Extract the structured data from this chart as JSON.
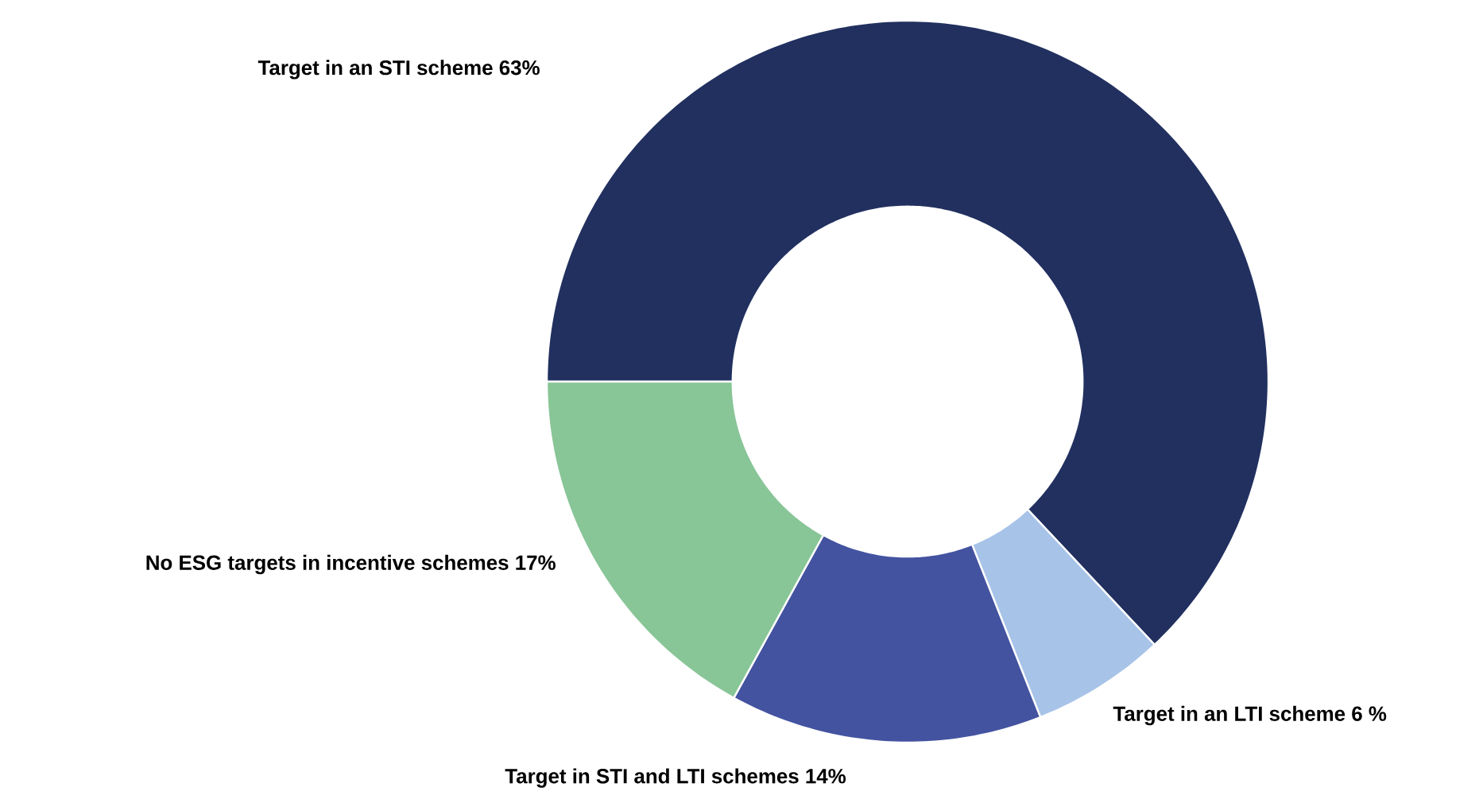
{
  "chart_data": {
    "type": "donut",
    "categories": [
      "Target in an STI scheme",
      "Target in an LTI scheme",
      "Target in STI and LTI schemes",
      "No ESG targets in incentive schemes"
    ],
    "values": [
      63,
      6,
      14,
      17
    ],
    "value_labels": [
      "63%",
      "6 %",
      "14%",
      "17%"
    ],
    "colors": [
      "#21305f",
      "#a7c3e8",
      "#4353a0",
      "#88c597"
    ]
  }
}
